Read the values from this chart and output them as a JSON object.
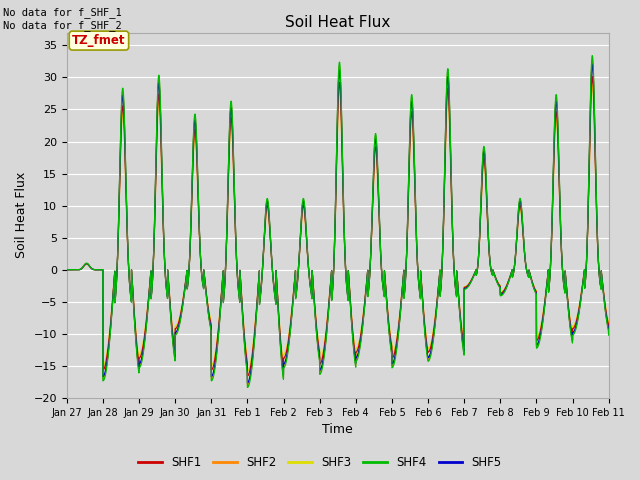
{
  "title": "Soil Heat Flux",
  "ylabel": "Soil Heat Flux",
  "xlabel": "Time",
  "ylim": [
    -20,
    37
  ],
  "yticks": [
    -20,
    -15,
    -10,
    -5,
    0,
    5,
    10,
    15,
    20,
    25,
    30,
    35
  ],
  "colors": {
    "SHF1": "#cc0000",
    "SHF2": "#ff8800",
    "SHF3": "#dddd00",
    "SHF4": "#00bb00",
    "SHF5": "#0000cc"
  },
  "legend_labels": [
    "SHF1",
    "SHF2",
    "SHF3",
    "SHF4",
    "SHF5"
  ],
  "annotation_text": "No data for f_SHF_1\nNo data for f_SHF_2",
  "box_label": "TZ_fmet",
  "box_facecolor": "#ffffe0",
  "box_edgecolor": "#999900",
  "box_textcolor": "#cc0000",
  "fig_facecolor": "#d8d8d8",
  "tick_labels": [
    "Jan 27",
    "Jan 28",
    "Jan 29",
    "Jan 30",
    "Jan 31",
    "Feb 1",
    "Feb 2",
    "Feb 3",
    "Feb 4",
    "Feb 5",
    "Feb 6",
    "Feb 7",
    "Feb 8",
    "Feb 9",
    "Feb 10",
    "Feb 11"
  ],
  "day_peaks": [
    1,
    28,
    30,
    24,
    26,
    11,
    11,
    32,
    21,
    27,
    31,
    19,
    11,
    27,
    33
  ],
  "night_troughs": [
    0,
    -17,
    -15,
    -10,
    -17,
    -18,
    -15,
    -16,
    -14,
    -15,
    -14,
    -3,
    -4,
    -12,
    -10
  ]
}
